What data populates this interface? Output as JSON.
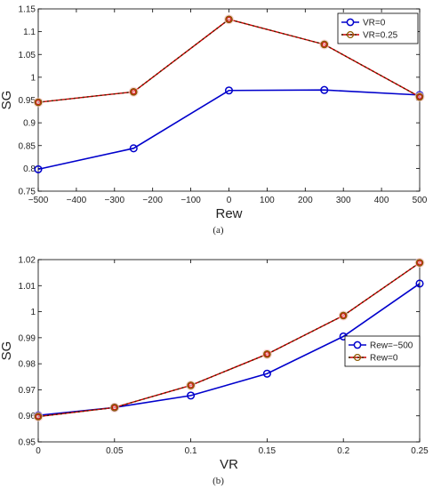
{
  "chart_data": [
    {
      "type": "line",
      "caption": "(a)",
      "xlabel": "Rew",
      "ylabel": "SG",
      "xlim": [
        -500,
        500
      ],
      "ylim": [
        0.75,
        1.15
      ],
      "x": [
        -500,
        -250,
        0,
        250,
        500
      ],
      "xticks": [
        -500,
        -400,
        -300,
        -200,
        -100,
        0,
        100,
        200,
        300,
        400,
        500
      ],
      "xtick_labels": [
        "−500",
        "−400",
        "−300",
        "−200",
        "−100",
        "0",
        "100",
        "200",
        "300",
        "400",
        "500"
      ],
      "yticks": [
        0.75,
        0.8,
        0.85,
        0.9,
        0.95,
        1,
        1.05,
        1.1,
        1.15
      ],
      "ytick_labels": [
        "0.75",
        "0.8",
        "0.85",
        "0.9",
        "0.95",
        "1",
        "1.05",
        "1.1",
        "1.15"
      ],
      "legend_position": "top-right",
      "grid": false,
      "series": [
        {
          "name": "VR=0",
          "color": "#0000cc",
          "line_style": "solid",
          "values": [
            0.798,
            0.844,
            0.971,
            0.972,
            0.961
          ]
        },
        {
          "name": "VR=0.25",
          "color": "#cc0000",
          "marker_edge": "#8b5a00",
          "line_style": "dashed",
          "values": [
            0.945,
            0.968,
            1.127,
            1.072,
            0.957
          ]
        }
      ]
    },
    {
      "type": "line",
      "caption": "(b)",
      "xlabel": "VR",
      "ylabel": "SG",
      "xlim": [
        0,
        0.25
      ],
      "ylim": [
        0.95,
        1.02
      ],
      "x": [
        0,
        0.05,
        0.1,
        0.15,
        0.2,
        0.25
      ],
      "xticks": [
        0,
        0.05,
        0.1,
        0.15,
        0.2,
        0.25
      ],
      "xtick_labels": [
        "0",
        "0.05",
        "0.1",
        "0.15",
        "0.2",
        "0.25"
      ],
      "yticks": [
        0.95,
        0.96,
        0.97,
        0.98,
        0.99,
        1,
        1.01,
        1.02
      ],
      "ytick_labels": [
        "0.95",
        "0.96",
        "0.97",
        "0.98",
        "0.99",
        "1",
        "1.01",
        "1.02"
      ],
      "legend_position": "right",
      "grid": false,
      "series": [
        {
          "name": "Rew=−500",
          "color": "#0000cc",
          "line_style": "solid",
          "values": [
            0.9602,
            0.9632,
            0.9678,
            0.9762,
            0.9905,
            1.0108
          ]
        },
        {
          "name": "Rew=0",
          "color": "#cc0000",
          "marker_edge": "#8b5a00",
          "line_style": "dashed",
          "values": [
            0.9597,
            0.9632,
            0.9717,
            0.9837,
            0.9985,
            1.0188
          ]
        }
      ]
    }
  ]
}
